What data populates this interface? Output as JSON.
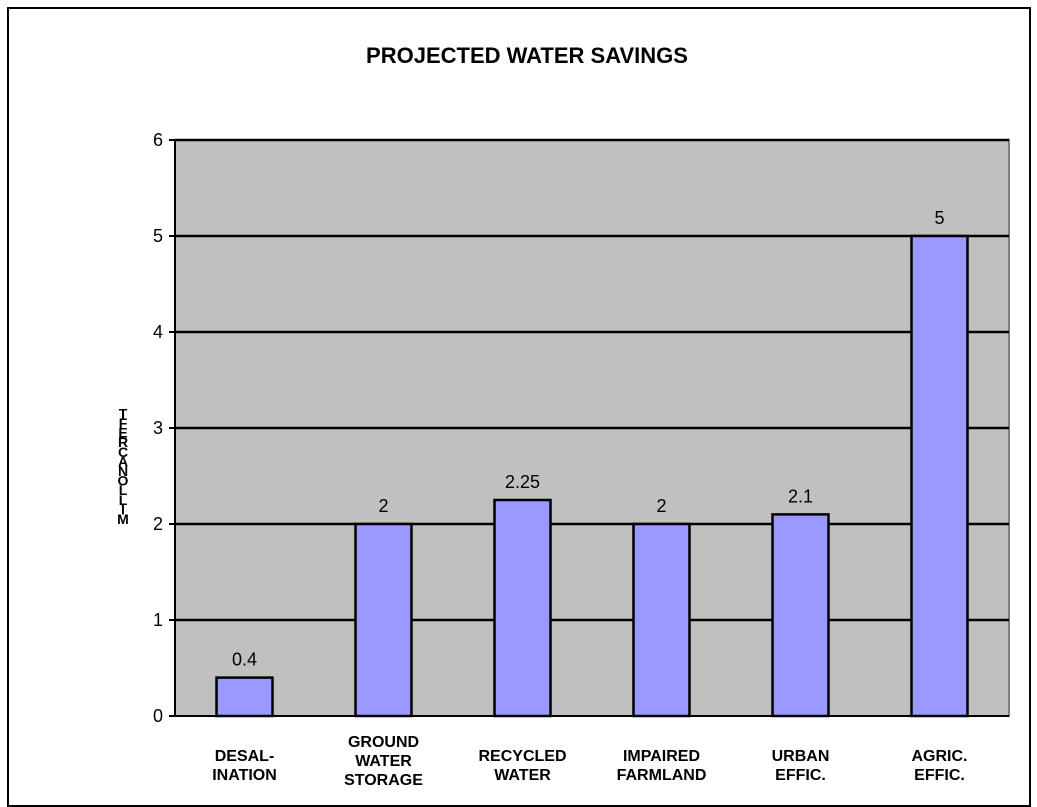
{
  "chart_data": {
    "type": "bar",
    "title": "PROJECTED WATER SAVINGS",
    "ylabel": "MILLON ACRE FT",
    "xlabel": "",
    "categories": [
      [
        "DESAL-",
        "INATION"
      ],
      [
        "GROUND",
        "WATER",
        "STORAGE"
      ],
      [
        "RECYCLED",
        "WATER"
      ],
      [
        "IMPAIRED",
        "FARMLAND"
      ],
      [
        "URBAN",
        "EFFIC."
      ],
      [
        "AGRIC.",
        "EFFIC."
      ]
    ],
    "values": [
      0.4,
      2,
      2.25,
      2,
      2.1,
      5
    ],
    "data_labels": [
      "0.4",
      "2",
      "2.25",
      "2",
      "2.1",
      "5"
    ],
    "ylim": [
      0,
      6
    ],
    "yticks": [
      0,
      1,
      2,
      3,
      4,
      5,
      6
    ],
    "grid": true,
    "colors": {
      "plot_background": "#c0c0c0",
      "bar_fill": "#9999ff",
      "bar_stroke": "#000000",
      "gridline": "#000000"
    }
  }
}
